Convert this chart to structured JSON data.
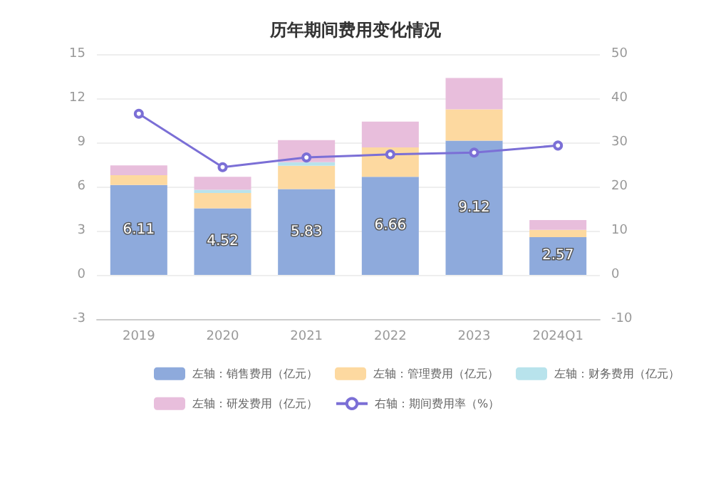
{
  "chart_data": {
    "type": "bar",
    "title": "历年期间费用变化情况",
    "categories": [
      "2019",
      "2020",
      "2021",
      "2022",
      "2023",
      "2024Q1"
    ],
    "stacked": true,
    "series": [
      {
        "name": "左轴：销售费用（亿元）",
        "color": "#8eaadc",
        "values": [
          6.11,
          4.52,
          5.83,
          6.66,
          9.12,
          2.57
        ],
        "value_labels": [
          "6.11",
          "4.52",
          "5.83",
          "6.66",
          "9.12",
          "2.57"
        ]
      },
      {
        "name": "左轴：管理费用（亿元）",
        "color": "#fdd9a0",
        "values": [
          0.67,
          1.04,
          1.58,
          2.0,
          2.13,
          0.49
        ]
      },
      {
        "name": "左轴：财务费用（亿元）",
        "color": "#b8e3ec",
        "values": [
          null,
          0.22,
          0.25,
          null,
          null,
          null
        ]
      },
      {
        "name": "左轴：研发费用（亿元）",
        "color": "#e8bedc",
        "values": [
          0.66,
          0.88,
          1.5,
          1.76,
          2.13,
          0.66
        ]
      },
      {
        "name": "右轴：期间费用率（%）",
        "type": "line",
        "axis": "y2",
        "marker": "circle",
        "color": "#7b6fd6",
        "values": [
          36.5,
          24.4,
          26.6,
          27.3,
          27.7,
          29.3
        ]
      }
    ],
    "ylim": [
      -3,
      15
    ],
    "yticks": [
      -3,
      0,
      3,
      6,
      9,
      12,
      15
    ],
    "y2lim": [
      -10,
      50
    ],
    "y2ticks": [
      -10,
      0,
      10,
      20,
      30,
      40,
      50
    ],
    "grid": "y",
    "legend": "bottom"
  }
}
